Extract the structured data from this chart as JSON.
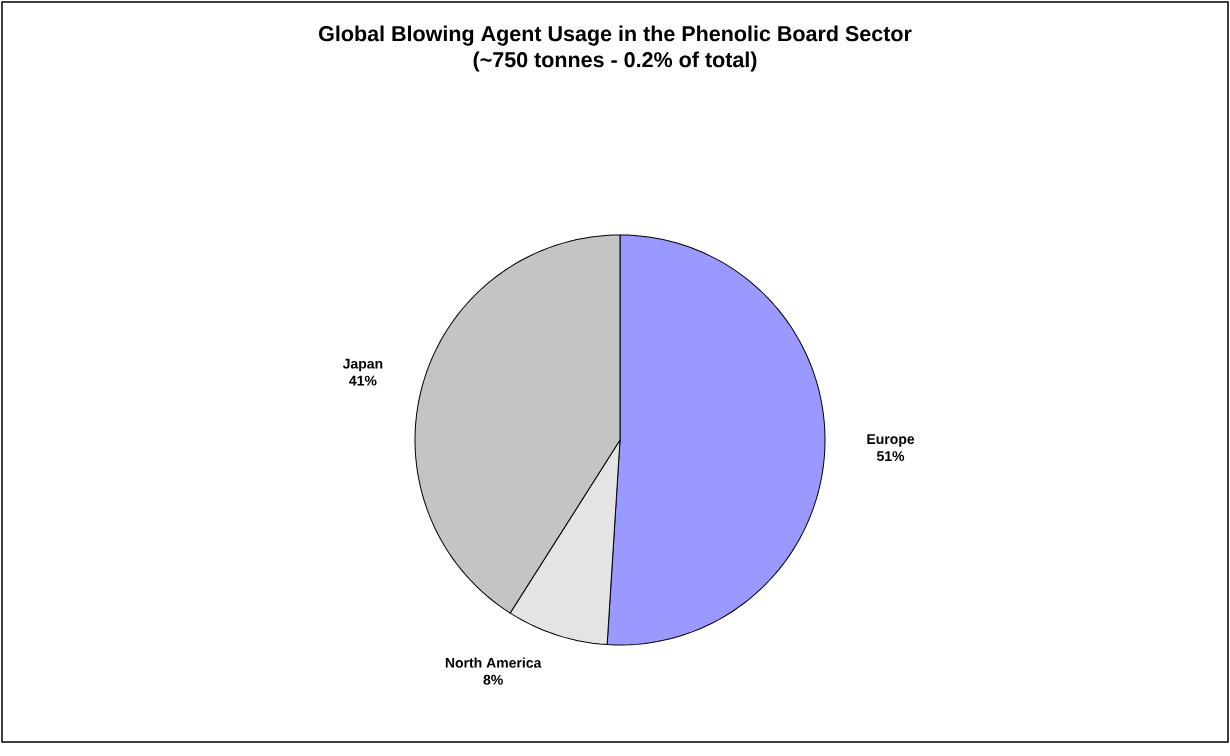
{
  "chart_data": {
    "type": "pie",
    "title": "Global Blowing Agent Usage in the Phenolic Board Sector",
    "subtitle": "(~750 tonnes - 0.2% of total)",
    "categories": [
      "Europe",
      "North America",
      "Japan"
    ],
    "values": [
      51,
      8,
      41
    ],
    "value_labels": [
      "51%",
      "8%",
      "41%"
    ],
    "colors": [
      "#9999ff",
      "#e4e4e4",
      "#c4c4c4"
    ]
  }
}
